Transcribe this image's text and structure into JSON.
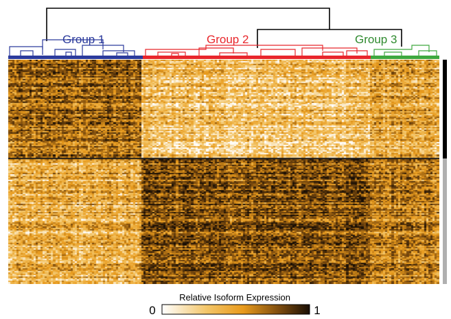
{
  "chart_data": {
    "type": "heatmap",
    "groups": [
      {
        "label": "Group 1",
        "color": "#2b3a9c",
        "sample_fraction": 0.31
      },
      {
        "label": "Group 2",
        "color": "#e8262b",
        "sample_fraction": 0.53
      },
      {
        "label": "Group 3",
        "color": "#2f8a2f",
        "sample_fraction": 0.16
      }
    ],
    "colorbar": {
      "title": "Relative Isoform Expression",
      "min_label": "0",
      "max_label": "1",
      "stops": [
        "#ffffff",
        "#f3c66a",
        "#e89a1c",
        "#7a4a0e",
        "#1a0f05"
      ]
    },
    "row_clusters": [
      {
        "side_color": "#000000",
        "row_fraction": 0.44,
        "mean_expression_by_group": [
          0.65,
          0.28,
          0.42
        ]
      },
      {
        "side_color": "#b0b0b0",
        "row_fraction": 0.56,
        "mean_expression_by_group": [
          0.38,
          0.72,
          0.58
        ]
      }
    ],
    "dendrogram": "Group 2 and Group 3 join first, then merge with Group 1"
  }
}
